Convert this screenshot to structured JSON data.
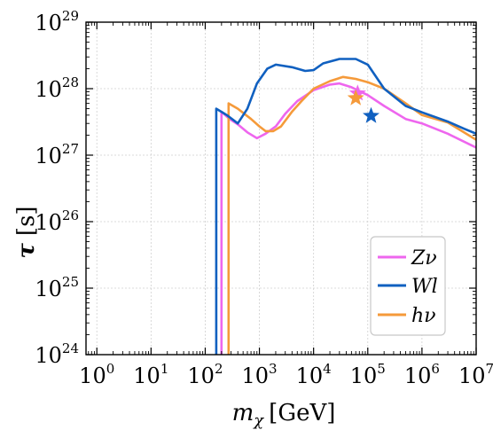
{
  "chart_data": {
    "type": "line",
    "xlabel": {
      "symbol": "m",
      "subscript": "χ",
      "unit": "[GeV]"
    },
    "ylabel": {
      "symbol": "τ",
      "unit": "[s]"
    },
    "x_scale": "log",
    "y_scale": "log",
    "xlim": [
      0.631,
      10000000
    ],
    "ylim": [
      1e+24,
      1e+29
    ],
    "x_ticks": [
      {
        "base": "10",
        "exp": "0",
        "value": 1
      },
      {
        "base": "10",
        "exp": "1",
        "value": 10
      },
      {
        "base": "10",
        "exp": "2",
        "value": 100
      },
      {
        "base": "10",
        "exp": "3",
        "value": 1000
      },
      {
        "base": "10",
        "exp": "4",
        "value": 10000
      },
      {
        "base": "10",
        "exp": "5",
        "value": 100000
      },
      {
        "base": "10",
        "exp": "6",
        "value": 1000000
      },
      {
        "base": "10",
        "exp": "7",
        "value": 10000000
      }
    ],
    "y_ticks": [
      {
        "base": "10",
        "exp": "24",
        "value": 1e+24
      },
      {
        "base": "10",
        "exp": "25",
        "value": 1e+25
      },
      {
        "base": "10",
        "exp": "26",
        "value": 1e+26
      },
      {
        "base": "10",
        "exp": "27",
        "value": 1e+27
      },
      {
        "base": "10",
        "exp": "28",
        "value": 1e+28
      },
      {
        "base": "10",
        "exp": "29",
        "value": 1e+29
      }
    ],
    "grid": true,
    "legend_position": "bottom-right",
    "series": [
      {
        "name": "Zν",
        "color": "#ee66ee",
        "points": [
          [
            200,
            1e+24
          ],
          [
            200,
            4.5e+27
          ],
          [
            280,
            3.5e+27
          ],
          [
            400,
            2.9e+27
          ],
          [
            600,
            2.2e+27
          ],
          [
            900,
            1.8e+27
          ],
          [
            1300,
            2.1e+27
          ],
          [
            2000,
            2.7e+27
          ],
          [
            3000,
            4.2e+27
          ],
          [
            5000,
            6.5e+27
          ],
          [
            10000,
            9.5e+27
          ],
          [
            20000,
            1.15e+28
          ],
          [
            30000,
            1.2e+28
          ],
          [
            50000,
            1.05e+28
          ],
          [
            100000,
            8e+27
          ],
          [
            200000,
            5.5e+27
          ],
          [
            500000,
            3.5e+27
          ],
          [
            1000000,
            3e+27
          ],
          [
            3000000,
            2.1e+27
          ],
          [
            10000000,
            1.3e+27
          ]
        ]
      },
      {
        "name": "Wl",
        "color": "#1060c0",
        "points": [
          [
            160,
            1e+24
          ],
          [
            160,
            5e+27
          ],
          [
            250,
            4e+27
          ],
          [
            400,
            3e+27
          ],
          [
            600,
            5e+27
          ],
          [
            900,
            1.2e+28
          ],
          [
            1400,
            2e+28
          ],
          [
            2000,
            2.3e+28
          ],
          [
            4000,
            2.1e+28
          ],
          [
            7000,
            1.85e+28
          ],
          [
            10000,
            1.9e+28
          ],
          [
            15000,
            2.4e+28
          ],
          [
            30000,
            2.8e+28
          ],
          [
            60000,
            2.8e+28
          ],
          [
            100000,
            2.3e+28
          ],
          [
            200000,
            1e+28
          ],
          [
            500000,
            5.5e+27
          ],
          [
            1000000,
            4.4e+27
          ],
          [
            3000000,
            3.2e+27
          ],
          [
            6000000,
            2.5e+27
          ],
          [
            10000000,
            2.1e+27
          ]
        ]
      },
      {
        "name": "hν",
        "color": "#f59a3a",
        "points": [
          [
            270,
            1e+24
          ],
          [
            270,
            6e+27
          ],
          [
            400,
            5e+27
          ],
          [
            700,
            3.5e+27
          ],
          [
            1000,
            2.7e+27
          ],
          [
            1300,
            2.3e+27
          ],
          [
            1800,
            2.3e+27
          ],
          [
            2500,
            2.7e+27
          ],
          [
            4000,
            4.5e+27
          ],
          [
            6000,
            6.5e+27
          ],
          [
            10000,
            1e+28
          ],
          [
            20000,
            1.3e+28
          ],
          [
            35000,
            1.5e+28
          ],
          [
            60000,
            1.4e+28
          ],
          [
            100000,
            1.25e+28
          ],
          [
            200000,
            1e+28
          ],
          [
            500000,
            6e+27
          ],
          [
            1000000,
            4e+27
          ],
          [
            3000000,
            3.1e+27
          ],
          [
            10000000,
            1.7e+27
          ]
        ]
      }
    ],
    "markers": [
      {
        "series": "Zν",
        "shape": "star",
        "x": 65000,
        "y": 8.5e+27,
        "color": "#ee66ee"
      },
      {
        "series": "hν",
        "shape": "star",
        "x": 60000,
        "y": 7.2e+27,
        "color": "#f59a3a"
      },
      {
        "series": "Wl",
        "shape": "star",
        "x": 115000,
        "y": 3.9e+27,
        "color": "#1060c0"
      }
    ]
  },
  "legend": [
    {
      "label": "Zν",
      "color": "#ee66ee"
    },
    {
      "label": "Wl",
      "color": "#1060c0"
    },
    {
      "label": "hν",
      "color": "#f59a3a"
    }
  ]
}
